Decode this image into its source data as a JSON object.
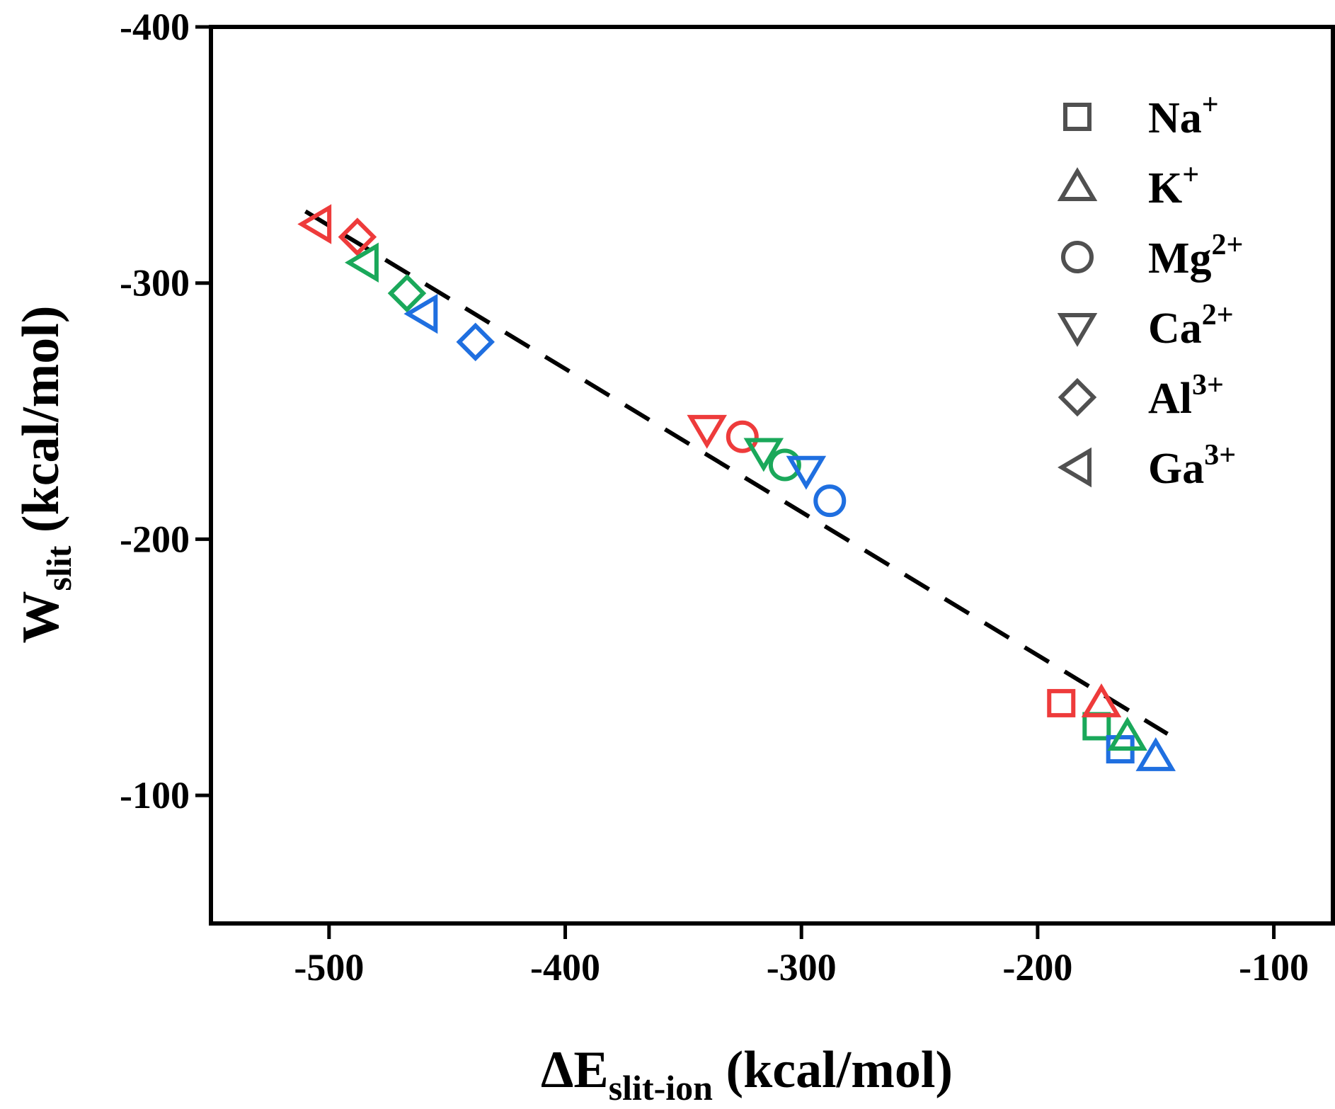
{
  "chart_data": {
    "type": "scatter",
    "title": "",
    "xlabel": {
      "main": "ΔE",
      "sub": "slit-ion",
      "unit": " (kcal/mol)"
    },
    "ylabel": {
      "main": "W",
      "sub": "slit",
      "unit": " (kcal/mol)"
    },
    "xlim": [
      -550,
      -75
    ],
    "ylim": [
      -50,
      -400
    ],
    "x_ticks": [
      -500,
      -400,
      -300,
      -200,
      -100
    ],
    "y_ticks": [
      -100,
      -200,
      -300,
      -400
    ],
    "x_tick_labels": [
      "-500",
      "-400",
      "-300",
      "-200",
      "-100"
    ],
    "y_tick_labels": [
      "-100",
      "-200",
      "-300",
      "-400"
    ],
    "grid": false,
    "legend_position": "top-right",
    "colors": {
      "red": "#ee3b3b",
      "green": "#1aa85a",
      "blue": "#1f6fe0",
      "legend": "#505050",
      "fit": "#000000"
    },
    "legend": [
      {
        "marker": "square",
        "label": "Na",
        "sup": "+"
      },
      {
        "marker": "triangle-up",
        "label": "K",
        "sup": "+"
      },
      {
        "marker": "circle",
        "label": "Mg",
        "sup": "2+"
      },
      {
        "marker": "triangle-down",
        "label": "Ca",
        "sup": "2+"
      },
      {
        "marker": "diamond",
        "label": "Al",
        "sup": "3+"
      },
      {
        "marker": "triangle-left",
        "label": "Ga",
        "sup": "3+"
      }
    ],
    "series": [
      {
        "name": "Na+",
        "marker": "square",
        "points": [
          {
            "x": -190,
            "y": -136,
            "color": "red"
          },
          {
            "x": -175,
            "y": -127,
            "color": "green"
          },
          {
            "x": -165,
            "y": -118,
            "color": "blue"
          }
        ]
      },
      {
        "name": "K+",
        "marker": "triangle-up",
        "points": [
          {
            "x": -173,
            "y": -136,
            "color": "red"
          },
          {
            "x": -162,
            "y": -123,
            "color": "green"
          },
          {
            "x": -150,
            "y": -115,
            "color": "blue"
          }
        ]
      },
      {
        "name": "Mg2+",
        "marker": "circle",
        "points": [
          {
            "x": -325,
            "y": -240,
            "color": "red"
          },
          {
            "x": -307,
            "y": -229,
            "color": "green"
          },
          {
            "x": -288,
            "y": -215,
            "color": "blue"
          }
        ]
      },
      {
        "name": "Ca2+",
        "marker": "triangle-down",
        "points": [
          {
            "x": -340,
            "y": -243,
            "color": "red"
          },
          {
            "x": -316,
            "y": -234,
            "color": "green"
          },
          {
            "x": -298,
            "y": -227,
            "color": "blue"
          }
        ]
      },
      {
        "name": "Al3+",
        "marker": "diamond",
        "points": [
          {
            "x": -488,
            "y": -318,
            "color": "red"
          },
          {
            "x": -467,
            "y": -296,
            "color": "green"
          },
          {
            "x": -438,
            "y": -277,
            "color": "blue"
          }
        ]
      },
      {
        "name": "Ga3+",
        "marker": "triangle-left",
        "points": [
          {
            "x": -505,
            "y": -323,
            "color": "red"
          },
          {
            "x": -485,
            "y": -308,
            "color": "green"
          },
          {
            "x": -460,
            "y": -288,
            "color": "blue"
          }
        ]
      }
    ],
    "fit_line": {
      "style": "dashed",
      "x": [
        -510,
        -145
      ],
      "y": [
        -328,
        -124
      ]
    }
  }
}
